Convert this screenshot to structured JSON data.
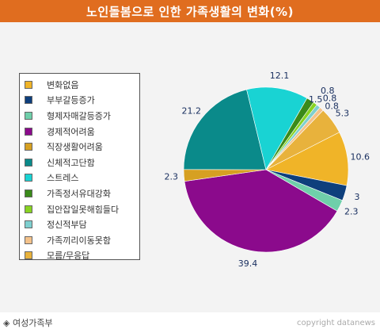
{
  "title": "노인돌봄으로 인한 가족생활의 변화(%)",
  "source": "◈ 여성가족부",
  "copyright": "copyright datanews",
  "chart_data": {
    "type": "pie",
    "categories": [
      "변화없음",
      "부부갈등증가",
      "형제자매갈등증가",
      "경제적어려움",
      "직장생활어려움",
      "신체적고단함",
      "스트레스",
      "가족정서유대강화",
      "집안잡일못해힘들다",
      "정신적부담",
      "가족끼리이동못함",
      "모름/무응답"
    ],
    "values": [
      10.6,
      3,
      2.3,
      39.4,
      2.3,
      21.2,
      12.1,
      1.5,
      0.8,
      0.8,
      0.8,
      5.3
    ],
    "value_labels": [
      "10.6",
      "3",
      "2.3",
      "39.4",
      "2.3",
      "21.2",
      "12.1",
      "1.5",
      "0.8",
      "0.8",
      "0.8",
      "5.3"
    ],
    "colors": [
      "#f0b428",
      "#0e3f7c",
      "#6fcfaa",
      "#8b0a8c",
      "#d6a022",
      "#0a8a8a",
      "#19d3d3",
      "#3a8a1a",
      "#88d322",
      "#7ecfcf",
      "#f4c28a",
      "#e8b23c"
    ],
    "legend_labels": [
      "변화없음",
      "부부갈등증가",
      "형제자매갈등증가",
      "경제적어려움",
      "직장생활어려움",
      "신체적고단함",
      "스트레스",
      "가족정서유대강화",
      "집안잡일못해힘들다",
      "정신적부담",
      "가족끼리이동못함",
      "모름/무응답"
    ],
    "legend_colors": [
      "#f0b428",
      "#0e3f7c",
      "#6fcfaa",
      "#8b0a8c",
      "#d6a022",
      "#0a8a8a",
      "#19d3d3",
      "#3a8a1a",
      "#88d322",
      "#7ecfcf",
      "#f4c28a",
      "#e8b23c"
    ],
    "start_angle_deg": -27,
    "direction": "clockwise",
    "legend_placement": "left"
  }
}
